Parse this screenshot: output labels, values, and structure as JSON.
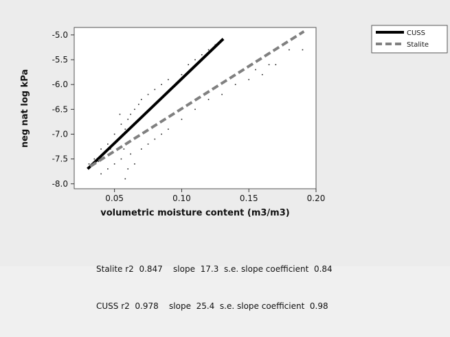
{
  "chart_data": {
    "type": "scatter",
    "xlabel": "volumetric moisture content (m3/m3)",
    "ylabel": "neg nat log kPa",
    "xlim": [
      0.02,
      0.2
    ],
    "ylim": [
      -8.1,
      -4.85
    ],
    "x_ticks": [
      0.05,
      0.1,
      0.15,
      0.2
    ],
    "x_tick_labels": [
      "0.05",
      "0.10",
      "0.15",
      "0.20"
    ],
    "y_ticks": [
      -5.0,
      -5.5,
      -6.0,
      -6.5,
      -7.0,
      -7.5,
      -8.0
    ],
    "y_tick_labels": [
      "-5.0",
      "-5.5",
      "-6.0",
      "-6.5",
      "-7.0",
      "-7.5",
      "-8.0"
    ],
    "grid": false,
    "legend_position": "right",
    "series": [
      {
        "name": "CUSS",
        "style": "solid",
        "color": "#000000",
        "fit_line": [
          [
            0.03,
            -7.7
          ],
          [
            0.131,
            -5.08
          ]
        ],
        "points": [
          [
            0.031,
            -7.6
          ],
          [
            0.035,
            -7.5
          ],
          [
            0.038,
            -7.55
          ],
          [
            0.04,
            -7.3
          ],
          [
            0.042,
            -7.4
          ],
          [
            0.045,
            -7.2
          ],
          [
            0.047,
            -7.3
          ],
          [
            0.05,
            -7.0
          ],
          [
            0.052,
            -7.15
          ],
          [
            0.054,
            -6.6
          ],
          [
            0.055,
            -6.8
          ],
          [
            0.057,
            -7.3
          ],
          [
            0.058,
            -6.9
          ],
          [
            0.06,
            -6.7
          ],
          [
            0.062,
            -6.6
          ],
          [
            0.065,
            -6.5
          ],
          [
            0.068,
            -6.4
          ],
          [
            0.07,
            -6.3
          ],
          [
            0.075,
            -6.2
          ],
          [
            0.08,
            -6.1
          ],
          [
            0.085,
            -6.0
          ],
          [
            0.09,
            -5.9
          ],
          [
            0.1,
            -5.8
          ],
          [
            0.105,
            -5.6
          ],
          [
            0.11,
            -5.5
          ],
          [
            0.115,
            -5.4
          ],
          [
            0.12,
            -5.3
          ],
          [
            0.125,
            -5.2
          ],
          [
            0.13,
            -5.1
          ]
        ]
      },
      {
        "name": "Stalite",
        "style": "dashed",
        "color": "#808080",
        "fit_line": [
          [
            0.032,
            -7.65
          ],
          [
            0.191,
            -4.93
          ]
        ],
        "points": [
          [
            0.04,
            -7.8
          ],
          [
            0.045,
            -7.7
          ],
          [
            0.05,
            -7.6
          ],
          [
            0.055,
            -7.5
          ],
          [
            0.058,
            -7.9
          ],
          [
            0.06,
            -7.7
          ],
          [
            0.062,
            -7.4
          ],
          [
            0.065,
            -7.6
          ],
          [
            0.07,
            -7.3
          ],
          [
            0.075,
            -7.2
          ],
          [
            0.08,
            -7.1
          ],
          [
            0.085,
            -7.0
          ],
          [
            0.09,
            -6.9
          ],
          [
            0.1,
            -6.7
          ],
          [
            0.11,
            -6.5
          ],
          [
            0.12,
            -6.3
          ],
          [
            0.13,
            -6.2
          ],
          [
            0.14,
            -6.0
          ],
          [
            0.15,
            -5.9
          ],
          [
            0.155,
            -5.7
          ],
          [
            0.16,
            -5.8
          ],
          [
            0.165,
            -5.6
          ],
          [
            0.17,
            -5.6
          ],
          [
            0.18,
            -5.3
          ],
          [
            0.19,
            -5.3
          ]
        ]
      }
    ]
  },
  "stats": [
    "Stalite r2  0.847    slope  17.3  s.e. slope coefficient  0.84",
    "CUSS r2  0.978    slope  25.4  s.e. slope coefficient  0.98"
  ]
}
